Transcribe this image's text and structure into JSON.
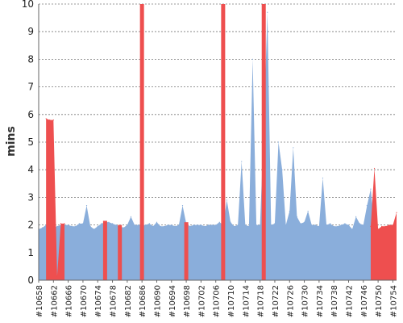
{
  "chart_data": {
    "type": "area",
    "ylabel": "mins",
    "ylim": [
      0,
      10
    ],
    "yticks": [
      0,
      1,
      2,
      3,
      4,
      5,
      6,
      7,
      8,
      9,
      10
    ],
    "xlim": [
      10658,
      10755
    ],
    "grid": true,
    "colors": {
      "blue": "#8aaedb",
      "red": "#ee4f4f",
      "grid": "#777777",
      "axis": "#666666"
    },
    "xticks": [
      "#10658",
      "#10662",
      "#10666",
      "#10670",
      "#10674",
      "#10678",
      "#10682",
      "#10686",
      "#10690",
      "#10694",
      "#10698",
      "#10702",
      "#10706",
      "#10710",
      "#10714",
      "#10718",
      "#10722",
      "#10726",
      "#10730",
      "#10734",
      "#10738",
      "#10742",
      "#10746",
      "#10750",
      "#10754"
    ],
    "series": [
      {
        "color": "blue",
        "x": [
          10658,
          10659,
          10660,
          10661,
          10662,
          10663,
          10664,
          10665,
          10666,
          10667,
          10668,
          10669,
          10670,
          10671,
          10672,
          10673,
          10674,
          10675,
          10676,
          10677,
          10678,
          10679,
          10680,
          10681,
          10682,
          10683,
          10684,
          10685,
          10686,
          10687,
          10688,
          10689,
          10690,
          10691,
          10692,
          10693,
          10694,
          10695,
          10696,
          10697,
          10698,
          10699,
          10700,
          10701,
          10702,
          10703,
          10704,
          10705,
          10706,
          10707,
          10708,
          10709,
          10710,
          10711,
          10712,
          10713,
          10714,
          10715,
          10716,
          10717,
          10718,
          10719,
          10720,
          10721,
          10722,
          10723,
          10724,
          10725,
          10726,
          10727,
          10728,
          10729,
          10730,
          10731,
          10732,
          10733,
          10734,
          10735,
          10736,
          10737,
          10738,
          10739,
          10740,
          10741,
          10742,
          10743,
          10744,
          10745,
          10746,
          10747,
          10748,
          10749
        ],
        "values": [
          1.85,
          1.9,
          2.0,
          2.0,
          1.9,
          1.95,
          2.0,
          2.0,
          2.0,
          1.95,
          1.95,
          2.05,
          2.05,
          2.7,
          1.95,
          1.85,
          1.95,
          2.05,
          2.1,
          2.1,
          2.05,
          2.0,
          1.95,
          1.9,
          2.0,
          2.3,
          2.0,
          2.0,
          2.0,
          2.0,
          2.05,
          1.95,
          2.1,
          1.95,
          1.95,
          2.0,
          2.0,
          1.95,
          2.0,
          2.7,
          2.05,
          1.95,
          2.0,
          2.0,
          2.0,
          1.95,
          2.0,
          2.0,
          2.0,
          2.1,
          2.0,
          2.9,
          2.1,
          1.95,
          2.0,
          4.3,
          2.0,
          1.95,
          8.0,
          2.0,
          2.0,
          5.5,
          9.7,
          2.0,
          2.05,
          5.0,
          4.0,
          2.0,
          2.5,
          4.8,
          2.3,
          2.05,
          2.1,
          2.5,
          2.0,
          2.0,
          1.95,
          3.7,
          2.0,
          2.05,
          1.95,
          1.95,
          2.0,
          2.05,
          2.0,
          1.85,
          2.3,
          2.05,
          2.0,
          2.7,
          3.3,
          2.0
        ]
      },
      {
        "color": "red",
        "x": [
          10660,
          10661,
          10662,
          10663,
          10664,
          10665
        ],
        "values": [
          5.85,
          5.8,
          5.8,
          0.15,
          2.05,
          2.05
        ]
      },
      {
        "color": "red",
        "x": [
          10748,
          10749,
          10750,
          10751,
          10752,
          10753,
          10754,
          10755
        ],
        "values": [
          1.95,
          4.05,
          1.85,
          1.95,
          1.95,
          2.0,
          2.0,
          2.45
        ]
      },
      {
        "color": "red",
        "bars": true,
        "x": [
          10676,
          10680,
          10686,
          10698,
          10708,
          10719
        ],
        "values": [
          2.15,
          2.0,
          10,
          2.1,
          10,
          10
        ]
      }
    ]
  }
}
